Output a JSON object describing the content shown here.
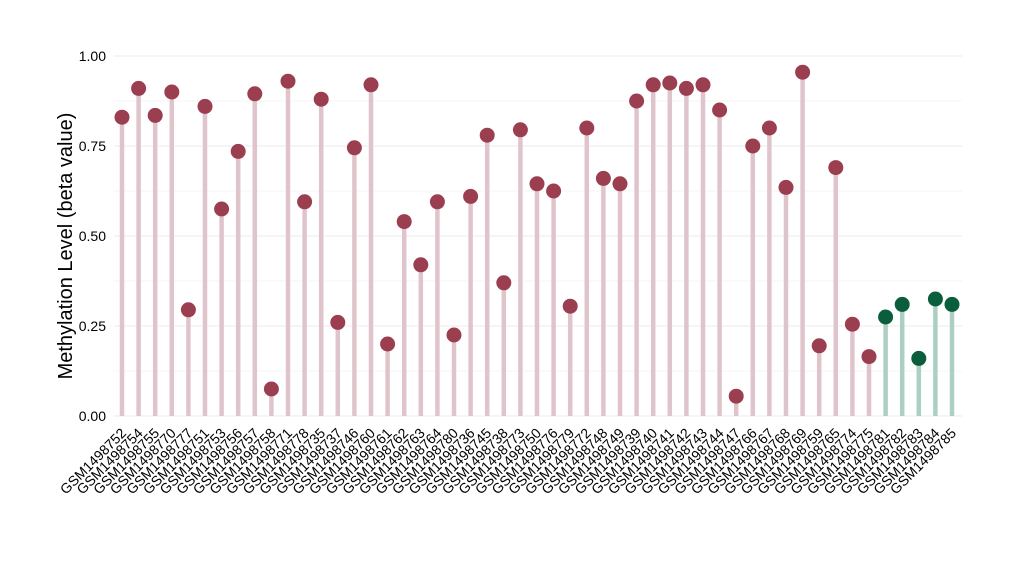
{
  "chart_data": {
    "type": "lollipop",
    "title": "",
    "xlabel": "",
    "ylabel": "Methylation Level (beta value)",
    "ylim": [
      0,
      1
    ],
    "yticks": [
      "0.00",
      "0.25",
      "0.50",
      "0.75",
      "1.00"
    ],
    "grid": true,
    "colors": {
      "group_a_point": "#9b3f50",
      "group_a_stem": "#dfc5cb",
      "group_b_point": "#0b5e3c",
      "group_b_stem": "#adcfc2",
      "grid": "#ebebeb"
    },
    "categories": [
      "GSM1498752",
      "GSM1498754",
      "GSM1498755",
      "GSM1498770",
      "GSM1498777",
      "GSM1498751",
      "GSM1498753",
      "GSM1498756",
      "GSM1498757",
      "GSM1498758",
      "GSM1498771",
      "GSM1498778",
      "GSM1498735",
      "GSM1498737",
      "GSM1498746",
      "GSM1498760",
      "GSM1498761",
      "GSM1498762",
      "GSM1498763",
      "GSM1498764",
      "GSM1498780",
      "GSM1498736",
      "GSM1498745",
      "GSM1498738",
      "GSM1498773",
      "GSM1498750",
      "GSM1498776",
      "GSM1498779",
      "GSM1498772",
      "GSM1498748",
      "GSM1498749",
      "GSM1498739",
      "GSM1498740",
      "GSM1498741",
      "GSM1498742",
      "GSM1498743",
      "GSM1498744",
      "GSM1498747",
      "GSM1498766",
      "GSM1498767",
      "GSM1498768",
      "GSM1498769",
      "GSM1498759",
      "GSM1498765",
      "GSM1498774",
      "GSM1498775",
      "GSM1498781",
      "GSM1498782",
      "GSM1498783",
      "GSM1498784",
      "GSM1498785"
    ],
    "values": [
      0.83,
      0.91,
      0.835,
      0.9,
      0.295,
      0.86,
      0.575,
      0.735,
      0.895,
      0.075,
      0.93,
      0.595,
      0.88,
      0.26,
      0.745,
      0.92,
      0.2,
      0.54,
      0.42,
      0.595,
      0.225,
      0.61,
      0.78,
      0.37,
      0.795,
      0.645,
      0.625,
      0.305,
      0.8,
      0.66,
      0.645,
      0.875,
      0.92,
      0.925,
      0.91,
      0.92,
      0.85,
      0.055,
      0.75,
      0.8,
      0.635,
      0.955,
      0.195,
      0.69,
      0.255,
      0.165,
      0.275,
      0.31,
      0.16,
      0.325,
      0.31
    ],
    "groups": [
      "a",
      "a",
      "a",
      "a",
      "a",
      "a",
      "a",
      "a",
      "a",
      "a",
      "a",
      "a",
      "a",
      "a",
      "a",
      "a",
      "a",
      "a",
      "a",
      "a",
      "a",
      "a",
      "a",
      "a",
      "a",
      "a",
      "a",
      "a",
      "a",
      "a",
      "a",
      "a",
      "a",
      "a",
      "a",
      "a",
      "a",
      "a",
      "a",
      "a",
      "a",
      "a",
      "a",
      "a",
      "a",
      "a",
      "b",
      "b",
      "b",
      "b",
      "b"
    ]
  }
}
